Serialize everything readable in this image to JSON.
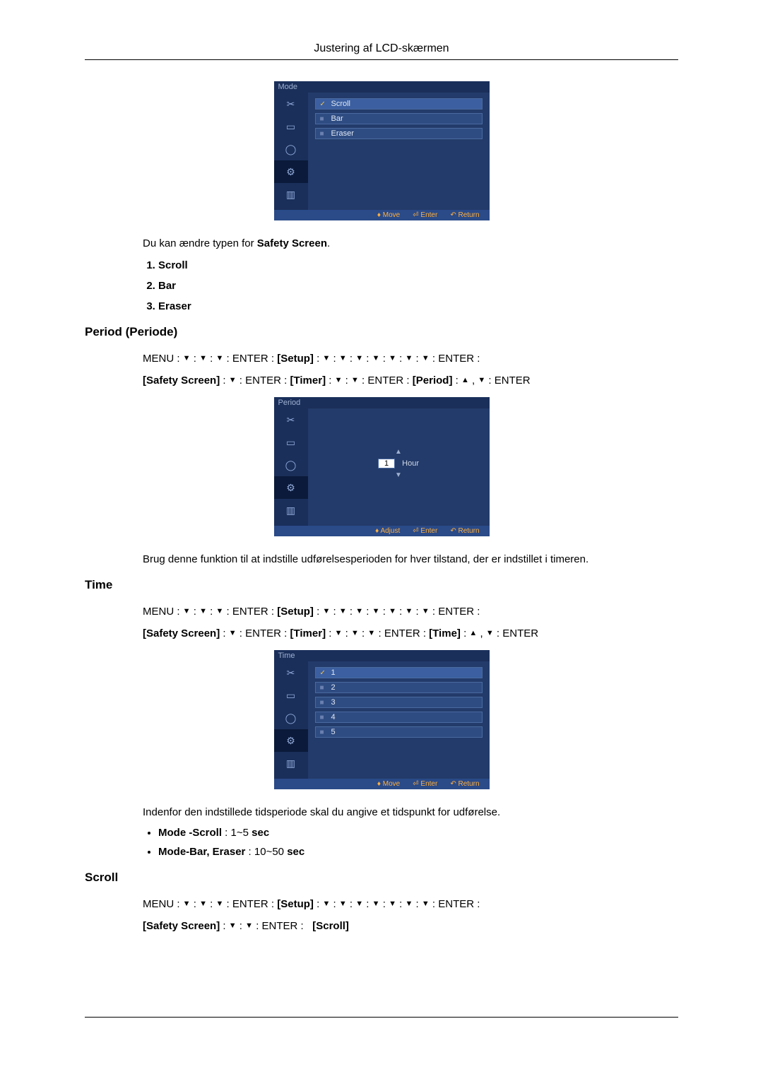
{
  "header": {
    "title": "Justering af LCD-skærmen"
  },
  "intro": {
    "text": "Du kan ændre typen for ",
    "bold": "Safety Screen",
    "end": "."
  },
  "mode_list": {
    "items": [
      "Scroll",
      "Bar",
      "Eraser"
    ]
  },
  "osd_mode": {
    "title": "Mode",
    "options": [
      "Scroll",
      "Bar",
      "Eraser"
    ],
    "selected_index": 0,
    "footer": {
      "move": "Move",
      "enter": "Enter",
      "return": "Return"
    }
  },
  "period": {
    "title": "Period (Periode)",
    "nav1_prefix": "MENU : ",
    "nav1_enter": "ENTER",
    "nav1_setup": "[Setup]",
    "nav1_end": "ENTER :",
    "nav2_safety": "[Safety Screen]",
    "nav2_timer": "[Timer]",
    "nav2_period": "[Period]",
    "nav2_enter": "ENTER",
    "body": "Brug denne funktion til at indstille udførelsesperioden for hver tilstand, der er indstillet i timeren."
  },
  "osd_period": {
    "title": "Period",
    "value": "1",
    "unit": "Hour",
    "footer": {
      "adjust": "Adjust",
      "enter": "Enter",
      "return": "Return"
    }
  },
  "time": {
    "title": "Time",
    "nav1_prefix": "MENU : ",
    "nav1_enter": "ENTER",
    "nav1_setup": "[Setup]",
    "nav1_end": "ENTER :",
    "nav2_safety": "[Safety Screen]",
    "nav2_timer": "[Timer]",
    "nav2_time": "[Time]",
    "nav2_enter": "ENTER",
    "body": "Indenfor den indstillede tidsperiode skal du angive et tidspunkt for udførelse.",
    "bullet1_label": "Mode -Scroll",
    "bullet1_range": " : 1~5 ",
    "bullet1_unit": "sec",
    "bullet2_label": "Mode-Bar, Eraser",
    "bullet2_range": " : 10~50 ",
    "bullet2_unit": "sec"
  },
  "osd_time": {
    "title": "Time",
    "options": [
      "1",
      "2",
      "3",
      "4",
      "5"
    ],
    "selected_index": 0,
    "footer": {
      "move": "Move",
      "enter": "Enter",
      "return": "Return"
    }
  },
  "scroll": {
    "title": "Scroll",
    "nav1_prefix": "MENU : ",
    "nav1_enter": "ENTER",
    "nav1_setup": "[Setup]",
    "nav1_end": "ENTER :",
    "nav2_safety": "[Safety Screen]",
    "nav2_enter": "ENTER",
    "nav2_scroll": "[Scroll]"
  }
}
